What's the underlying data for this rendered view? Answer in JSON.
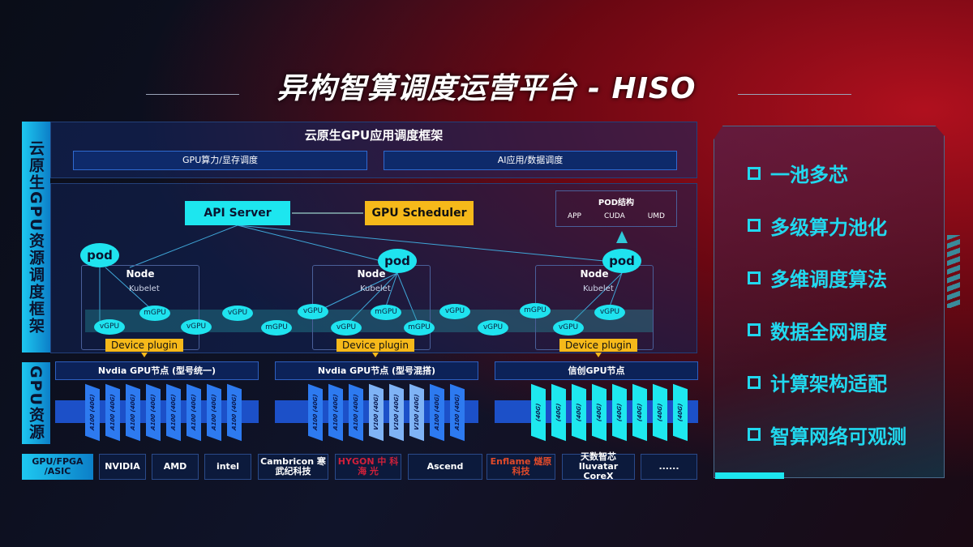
{
  "title": "异构智算调度运营平台 - HISO",
  "left_labels": {
    "framework": "云原生GPU资源调度框架",
    "gpu": "GPU资源"
  },
  "framework": {
    "heading": "云原生GPU应用调度框架",
    "sub": [
      "GPU算力/显存调度",
      "AI应用/数据调度"
    ],
    "api_server": "API Server",
    "scheduler": "GPU Scheduler",
    "pod_struct": {
      "title": "POD结构",
      "items": [
        "APP",
        "CUDA",
        "UMD"
      ]
    },
    "pod": "pod",
    "node": "Node",
    "kubelet": "Kubelet",
    "device_plugin": "Device plugin",
    "units": [
      "vGPU",
      "mGPU",
      "vGPU",
      "vGPU",
      "mGPU",
      "vGPU",
      "vGPU",
      "mGPU",
      "mGPU",
      "vGPU",
      "vGPU",
      "mGPU",
      "vGPU",
      "vGPU"
    ]
  },
  "gpu_nodes": [
    {
      "label": "Nvdia GPU节点 (型号统一)",
      "chips": [
        "A100 (40G)",
        "A100 (40G)",
        "A100 (40G)",
        "A100 (40G)",
        "A100 (40G)",
        "A100 (40G)",
        "A100 (40G)",
        "A100 (40G)"
      ]
    },
    {
      "label": "Nvdia GPU节点 (型号混搭)",
      "chips": [
        "A100 (40G)",
        "A100 (40G)",
        "A100 (40G)",
        "V100 (40G)",
        "V100 (40G)",
        "V100 (40G)",
        "A100 (40G)",
        "A100 (40G)"
      ]
    },
    {
      "label": "信创GPU节点",
      "chips": [
        "(40G)",
        "(40G)",
        "(40G)",
        "(40G)",
        "(40G)",
        "(40G)",
        "(40G)",
        "(40G)"
      ]
    }
  ],
  "vendors": {
    "label": "GPU/FPGA /ASIC",
    "items": [
      "NVIDIA",
      "AMD",
      "intel",
      "Cambricon 寒武纪科技",
      "HYGON 中 科 海 光",
      "Ascend",
      "Enflame 燧原科技",
      "天数智芯 Iluvatar CoreX",
      "......"
    ]
  },
  "features": [
    "一池多芯",
    "多级算力池化",
    "多维调度算法",
    "数据全网调度",
    "计算架构适配",
    "智算网络可观测"
  ],
  "colors": {
    "cyan": "#1de6ef",
    "yellow": "#f6b91a",
    "blue": "#2d7af0",
    "red": "#b0101e"
  }
}
